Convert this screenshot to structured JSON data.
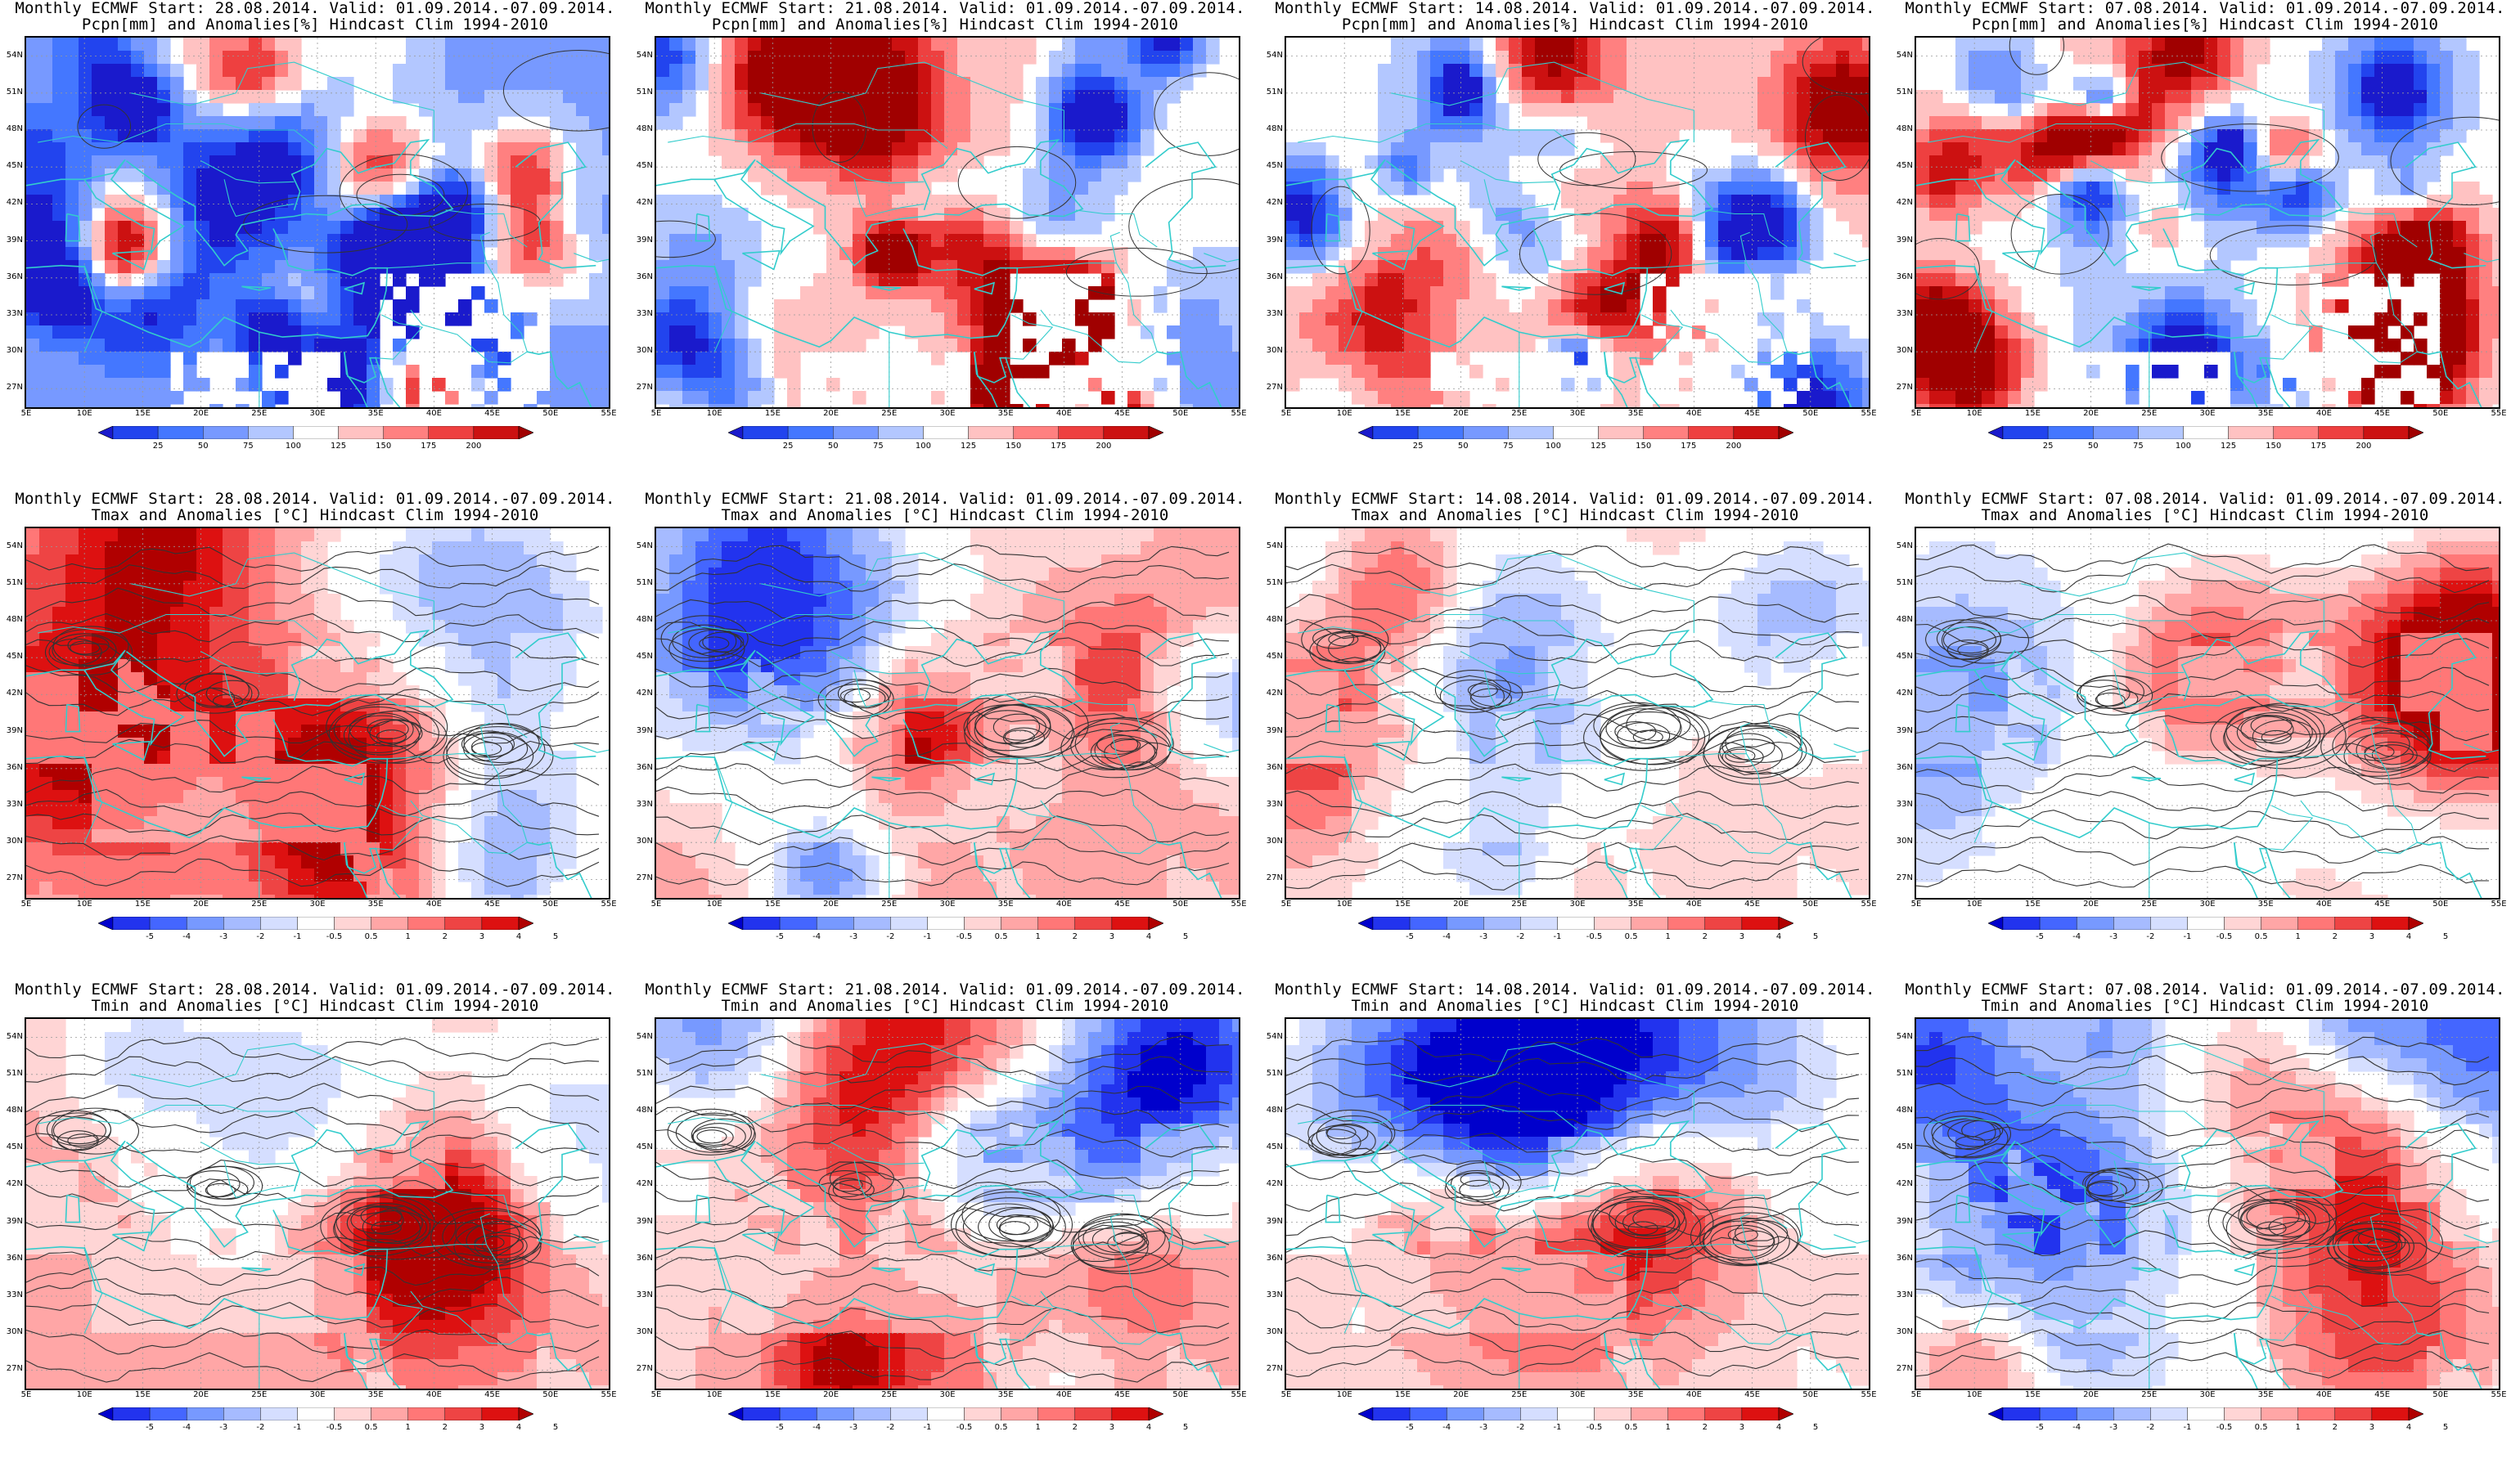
{
  "layout": {
    "rows": 3,
    "cols": 4
  },
  "starts": [
    "28.08.2014",
    "21.08.2014",
    "14.08.2014",
    "07.08.2014"
  ],
  "valid": "01.09.2014.-07.09.2014.",
  "title_prefix": "Monthly ECMWF Start:",
  "valid_prefix": "Valid:",
  "rows": [
    {
      "variable": "precipitation",
      "subtitle": "Pcpn[mm] and Anomalies[%] Hindcast Clim 1994-2010",
      "colorbar": {
        "ticks": [
          "25",
          "50",
          "75",
          "100",
          "125",
          "150",
          "175",
          "200"
        ],
        "colors": [
          "#1a1acc",
          "#2244ee",
          "#4477ff",
          "#7799ff",
          "#b3c7ff",
          "#ffffff",
          "#ffc2c2",
          "#ff8080",
          "#ee4040",
          "#cc1111",
          "#a00000"
        ]
      }
    },
    {
      "variable": "tmax",
      "subtitle": "Tmax and Anomalies [°C] Hindcast Clim 1994-2010",
      "colorbar": {
        "ticks": [
          "-5",
          "-4",
          "-3",
          "-2",
          "-1",
          "-0.5",
          "0.5",
          "1",
          "2",
          "3",
          "4",
          "5"
        ],
        "colors": [
          "#0000cc",
          "#2233ee",
          "#4466ff",
          "#7799ff",
          "#a6bbff",
          "#d5deff",
          "#ffffff",
          "#ffd5d5",
          "#ffa6a6",
          "#ff7777",
          "#ee4444",
          "#dd1111",
          "#b00000"
        ]
      }
    },
    {
      "variable": "tmin",
      "subtitle": "Tmin and Anomalies [°C] Hindcast Clim 1994-2010",
      "colorbar": {
        "ticks": [
          "-5",
          "-4",
          "-3",
          "-2",
          "-1",
          "-0.5",
          "0.5",
          "1",
          "2",
          "3",
          "4",
          "5"
        ],
        "colors": [
          "#0000cc",
          "#2233ee",
          "#4466ff",
          "#7799ff",
          "#a6bbff",
          "#d5deff",
          "#ffffff",
          "#ffd5d5",
          "#ffa6a6",
          "#ff7777",
          "#ee4444",
          "#dd1111",
          "#b00000"
        ]
      }
    }
  ],
  "axes": {
    "lat_labels": [
      "54N",
      "51N",
      "48N",
      "45N",
      "42N",
      "39N",
      "36N",
      "33N",
      "30N",
      "27N"
    ],
    "lon_labels": [
      "5E",
      "10E",
      "15E",
      "20E",
      "25E",
      "30E",
      "35E",
      "40E",
      "45E",
      "50E",
      "55E"
    ]
  },
  "panel_bias": [
    [
      -0.35,
      0.05,
      0.1,
      0.0
    ],
    [
      0.35,
      0.3,
      0.18,
      -0.05
    ],
    [
      0.3,
      0.25,
      0.15,
      -0.05
    ]
  ],
  "colors": {
    "coast": "#33cccc",
    "contour": "#333333",
    "grid": "#999999"
  }
}
